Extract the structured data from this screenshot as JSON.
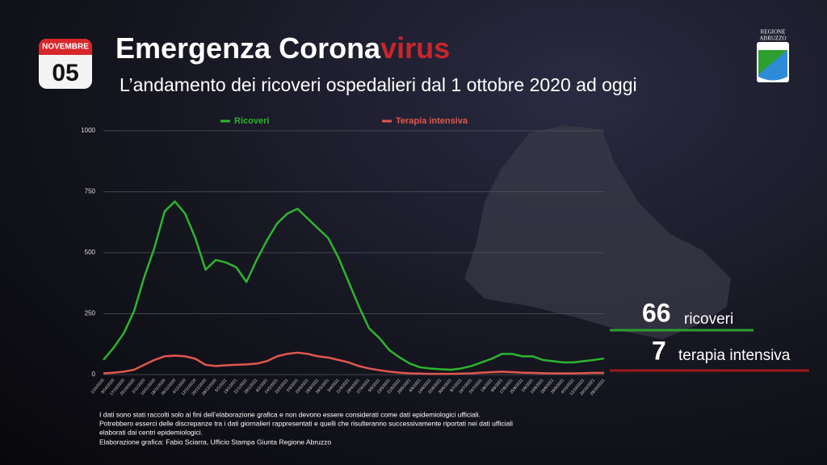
{
  "calendar": {
    "month": "NOVEMBRE",
    "day": "05"
  },
  "title_parts": [
    "Emergenza Corona",
    "virus"
  ],
  "subtitle": "L’andamento dei ricoveri ospedalieri dal 1 ottobre 2020 ad oggi",
  "logo": {
    "line1": "REGIONE",
    "line2": "ABRUZZO"
  },
  "callouts": [
    {
      "value": 66,
      "label": "ricoveri",
      "color": "#2e9e2e"
    },
    {
      "value": 7,
      "label": "terapia intensiva",
      "color": "#a01818"
    }
  ],
  "footnote": [
    "I dati sono stati raccolti solo ai fini dell’elaborazione grafica e non devono essere considerati come dati epidemiologici ufficiali.",
    "Potrebbero esserci delle discrepanze tra i dati giornalieri rappresentati e quelli che risulteranno successivamente riportati nei dati ufficiali",
    "elaborati dai centri epidemiologici.",
    "Elaborazione grafica: Fabio Sciarra, Ufficio Stampa Giunta Regione Abruzzo"
  ],
  "chart_data": {
    "type": "line",
    "categories": [
      "1/10/2020",
      "9/10/2020",
      "17/10/2020",
      "25/10/2020",
      "2/11/2020",
      "10/11/2020",
      "18/11/2020",
      "26/11/2020",
      "4/12/2020",
      "12/12/2020",
      "20/12/2020",
      "28/12/2020",
      "5/1/2021",
      "13/1/2021",
      "21/1/2021",
      "29/1/2021",
      "6/2/2021",
      "14/2/2021",
      "22/2/2021",
      "2/3/2021",
      "10/3/2021",
      "18/3/2021",
      "26/3/2021",
      "3/4/2021",
      "11/4/2021",
      "19/4/2021",
      "27/4/2021",
      "5/5/2021",
      "13/5/2021",
      "21/5/2021",
      "29/5/2021",
      "6/6/2021",
      "14/6/2021",
      "22/6/2021",
      "30/6/2021",
      "8/7/2021",
      "16/7/2021",
      "24/7/2021",
      "1/8/2021",
      "9/8/2021",
      "17/8/2021",
      "25/8/2021",
      "2/9/2021",
      "10/9/2021",
      "18/9/2021",
      "26/9/2021",
      "4/10/2021",
      "12/10/2021",
      "20/10/2021",
      "28/10/2021"
    ],
    "series": [
      {
        "name": "Ricoveri",
        "color": "#2db52d",
        "values": [
          60,
          110,
          170,
          260,
          400,
          520,
          670,
          710,
          660,
          560,
          430,
          470,
          460,
          440,
          380,
          470,
          550,
          620,
          660,
          680,
          640,
          600,
          560,
          480,
          380,
          280,
          190,
          150,
          100,
          70,
          45,
          30,
          25,
          22,
          20,
          25,
          35,
          50,
          65,
          85,
          85,
          75,
          75,
          60,
          55,
          50,
          50,
          55,
          60,
          66
        ]
      },
      {
        "name": "Terapia intensiva",
        "color": "#e0584e",
        "values": [
          5,
          8,
          12,
          20,
          40,
          60,
          75,
          78,
          75,
          65,
          40,
          35,
          38,
          40,
          42,
          45,
          55,
          75,
          85,
          90,
          85,
          75,
          70,
          60,
          50,
          35,
          25,
          18,
          12,
          8,
          5,
          4,
          3,
          3,
          3,
          4,
          5,
          8,
          10,
          12,
          10,
          8,
          7,
          6,
          5,
          5,
          5,
          6,
          7,
          7
        ]
      }
    ],
    "ylim": [
      0,
      1000
    ],
    "yticks": [
      0,
      250,
      500,
      750,
      1000
    ],
    "grid": true
  }
}
